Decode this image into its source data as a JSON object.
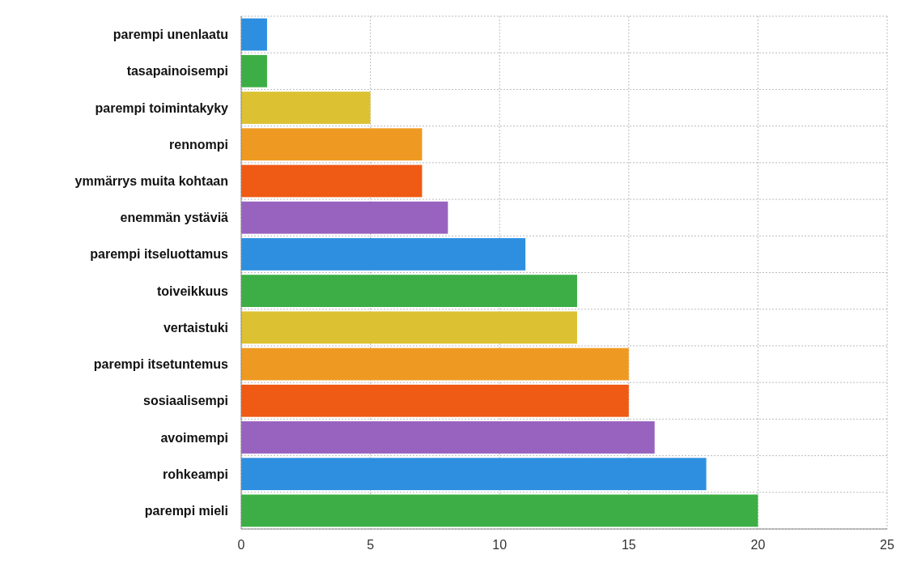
{
  "chart_data": {
    "type": "bar",
    "orientation": "horizontal",
    "categories": [
      "parempi unenlaatu",
      "tasapainoisempi",
      "parempi toimintakyky",
      "rennompi",
      "ymmärrys muita kohtaan",
      "enemmän ystäviä",
      "parempi itseluottamus",
      "toiveikkuus",
      "vertaistuki",
      "parempi itsetuntemus",
      "sosiaalisempi",
      "avoimempi",
      "rohkeampi",
      "parempi mieli"
    ],
    "values": [
      1,
      1,
      5,
      7,
      7,
      8,
      11,
      13,
      13,
      15,
      15,
      16,
      18,
      20
    ],
    "colors": [
      "#2e8fe0",
      "#3cae45",
      "#dcc232",
      "#ee9a22",
      "#ef5a14",
      "#9862bf",
      "#2e8fe0",
      "#3cae45",
      "#dcc232",
      "#ee9a22",
      "#ef5a14",
      "#9862bf",
      "#2e8fe0",
      "#3cae45"
    ],
    "xlim": [
      0,
      25
    ],
    "xticks": [
      0,
      5,
      10,
      15,
      20,
      25
    ],
    "grid": true
  }
}
